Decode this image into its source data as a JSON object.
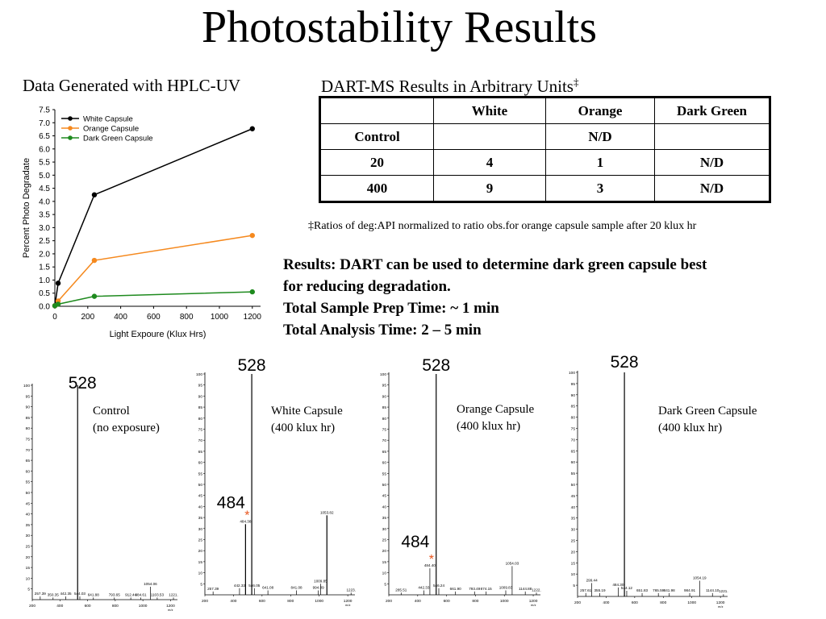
{
  "title": "Photostability Results",
  "hplc_heading": "Data Generated with HPLC-UV",
  "dart_heading": {
    "text": "DART-MS Results in Arbitrary Units",
    "mark": "‡"
  },
  "table": {
    "header": [
      "",
      "White",
      "Orange",
      "Dark Green"
    ],
    "rows": [
      [
        "Control",
        "",
        "N/D",
        ""
      ],
      [
        "20",
        "4",
        "1",
        "N/D"
      ],
      [
        "400",
        "9",
        "3",
        "N/D"
      ]
    ]
  },
  "footnote": "‡Ratios of deg:API normalized to ratio obs.for orange capsule sample after 20 klux hr",
  "results": [
    "Results: DART can be used to determine dark green capsule best",
    "for reducing degradation.",
    "Total Sample Prep Time: ~ 1 min",
    "Total Analysis Time: 2 – 5 min"
  ],
  "chart_data": [
    {
      "type": "line",
      "xlabel": "Light Expoure (Klux Hrs)",
      "ylabel": "Percent Photo Degradate",
      "xlim": [
        0,
        1250
      ],
      "ylim": [
        0,
        7.5
      ],
      "xticks": [
        0,
        200,
        400,
        600,
        800,
        1000,
        1200
      ],
      "yticks": [
        "0.0",
        "0.5",
        "1.0",
        "1.5",
        "2.0",
        "2.5",
        "3.0",
        "3.5",
        "4.0",
        "4.5",
        "5.0",
        "5.5",
        "6.0",
        "6.5",
        "7.0",
        "7.5"
      ],
      "legend": "top-left",
      "grid": false,
      "series": [
        {
          "name": "White Capsule",
          "color": "#000000",
          "x": [
            0,
            20,
            240,
            1200
          ],
          "y": [
            0.02,
            0.88,
            4.25,
            6.77
          ]
        },
        {
          "name": "Orange Capsule",
          "color": "#f5891e",
          "x": [
            0,
            20,
            240,
            1200
          ],
          "y": [
            0.02,
            0.2,
            1.75,
            2.7
          ]
        },
        {
          "name": "Dark Green Capsule",
          "color": "#1e8a1e",
          "x": [
            0,
            20,
            240,
            1200
          ],
          "y": [
            0.02,
            0.08,
            0.38,
            0.55
          ]
        }
      ]
    },
    {
      "type": "bar",
      "label": "Control",
      "sublabel": "(no exposure)",
      "main_peak": "528",
      "xlim": [
        200,
        1250
      ],
      "xticks": [
        200,
        400,
        600,
        800,
        1000,
        1200
      ],
      "yticks": [
        5,
        10,
        15,
        20,
        25,
        30,
        35,
        40,
        45,
        50,
        55,
        60,
        65,
        70,
        75,
        80,
        85,
        90,
        95,
        100
      ],
      "x_unit": "m/z",
      "peaks": [
        {
          "mz": 257.39,
          "i": 1.5,
          "label": "257.39"
        },
        {
          "mz": 350.35,
          "i": 1,
          "label": "350.35"
        },
        {
          "mz": 442.35,
          "i": 1.5,
          "label": "442.35"
        },
        {
          "mz": 528,
          "i": 100,
          "label": ""
        },
        {
          "mz": 544.03,
          "i": 1.5,
          "label": "544.03"
        },
        {
          "mz": 641.88,
          "i": 1,
          "label": "641.88"
        },
        {
          "mz": 793.65,
          "i": 1,
          "label": "793.65"
        },
        {
          "mz": 912.44,
          "i": 1,
          "label": "912.44"
        },
        {
          "mz": 984.61,
          "i": 1,
          "label": "984.61"
        },
        {
          "mz": 1054.06,
          "i": 6,
          "label": "1054.06"
        },
        {
          "mz": 1103.53,
          "i": 1,
          "label": "1103.53"
        },
        {
          "mz": 1221,
          "i": 1,
          "label": "1221."
        }
      ]
    },
    {
      "type": "bar",
      "label": "White Capsule",
      "sublabel": "(400 klux hr)",
      "main_peak": "528",
      "degradant_peak": "484",
      "marker": "*",
      "xlim": [
        200,
        1250
      ],
      "xticks": [
        200,
        400,
        600,
        800,
        1000,
        1200
      ],
      "yticks": [
        5,
        10,
        15,
        20,
        25,
        30,
        35,
        40,
        45,
        50,
        55,
        60,
        65,
        70,
        75,
        80,
        85,
        90,
        95,
        100
      ],
      "x_unit": "m/z",
      "peaks": [
        {
          "mz": 257.39,
          "i": 1.5,
          "label": "257.39"
        },
        {
          "mz": 442.33,
          "i": 3,
          "label": "442.33"
        },
        {
          "mz": 484.38,
          "i": 32,
          "label": "484.38"
        },
        {
          "mz": 528,
          "i": 100,
          "label": ""
        },
        {
          "mz": 546.05,
          "i": 3,
          "label": "546.05"
        },
        {
          "mz": 641.08,
          "i": 2,
          "label": "641.08"
        },
        {
          "mz": 841.08,
          "i": 2,
          "label": "841.08"
        },
        {
          "mz": 994.09,
          "i": 2,
          "label": "994.09"
        },
        {
          "mz": 1009.85,
          "i": 5,
          "label": "1009.85"
        },
        {
          "mz": 1053.82,
          "i": 36,
          "label": "1053.82"
        },
        {
          "mz": 1223,
          "i": 1,
          "label": "1223."
        }
      ]
    },
    {
      "type": "bar",
      "label": "Orange Capsule",
      "sublabel": "(400 klux hr)",
      "main_peak": "528",
      "degradant_peak": "484",
      "marker": "*",
      "xlim": [
        200,
        1250
      ],
      "xticks": [
        200,
        400,
        600,
        800,
        1000,
        1200
      ],
      "yticks": [
        5,
        10,
        15,
        20,
        25,
        30,
        35,
        40,
        45,
        50,
        55,
        60,
        65,
        70,
        75,
        80,
        85,
        90,
        95,
        100
      ],
      "x_unit": "m/z",
      "peaks": [
        {
          "mz": 285.51,
          "i": 1,
          "label": "285.51"
        },
        {
          "mz": 442.33,
          "i": 2,
          "label": "442.33"
        },
        {
          "mz": 484.4,
          "i": 12,
          "label": "484.40"
        },
        {
          "mz": 528,
          "i": 100,
          "label": ""
        },
        {
          "mz": 546.24,
          "i": 3,
          "label": "546.24"
        },
        {
          "mz": 661.9,
          "i": 1.5,
          "label": "661.90"
        },
        {
          "mz": 793.49,
          "i": 1.5,
          "label": "793.49"
        },
        {
          "mz": 874.15,
          "i": 1.5,
          "label": "874.15"
        },
        {
          "mz": 1009.83,
          "i": 2,
          "label": "1009.83"
        },
        {
          "mz": 1054.03,
          "i": 13,
          "label": "1054.03"
        },
        {
          "mz": 1144.88,
          "i": 1.5,
          "label": "1144.88"
        },
        {
          "mz": 1222,
          "i": 1,
          "label": "1222."
        }
      ]
    },
    {
      "type": "bar",
      "label": "Dark Green Capsule",
      "sublabel": "(400 klux hr)",
      "main_peak": "528",
      "xlim": [
        200,
        1250
      ],
      "xticks": [
        200,
        400,
        600,
        800,
        1000,
        1200
      ],
      "yticks": [
        5,
        10,
        15,
        20,
        25,
        30,
        35,
        40,
        45,
        50,
        55,
        60,
        65,
        70,
        75,
        80,
        85,
        90,
        95,
        100
      ],
      "x_unit": "m/z",
      "peaks": [
        {
          "mz": 257.61,
          "i": 1.5,
          "label": "257.61"
        },
        {
          "mz": 299.44,
          "i": 6,
          "label": "299.44"
        },
        {
          "mz": 355.19,
          "i": 1.5,
          "label": "355.19"
        },
        {
          "mz": 484.3,
          "i": 4,
          "label": "484.30"
        },
        {
          "mz": 528,
          "i": 100,
          "label": ""
        },
        {
          "mz": 544.12,
          "i": 2.5,
          "label": "544.12"
        },
        {
          "mz": 651.83,
          "i": 1.5,
          "label": "651.83"
        },
        {
          "mz": 765.59,
          "i": 1.5,
          "label": "765.59"
        },
        {
          "mz": 841.98,
          "i": 1.5,
          "label": "841.98"
        },
        {
          "mz": 984.91,
          "i": 1.5,
          "label": "984.91"
        },
        {
          "mz": 1054.19,
          "i": 7,
          "label": "1054.19"
        },
        {
          "mz": 1144.1,
          "i": 1.5,
          "label": "1144.10"
        },
        {
          "mz": 1221,
          "i": 1,
          "label": "1221."
        }
      ]
    }
  ]
}
